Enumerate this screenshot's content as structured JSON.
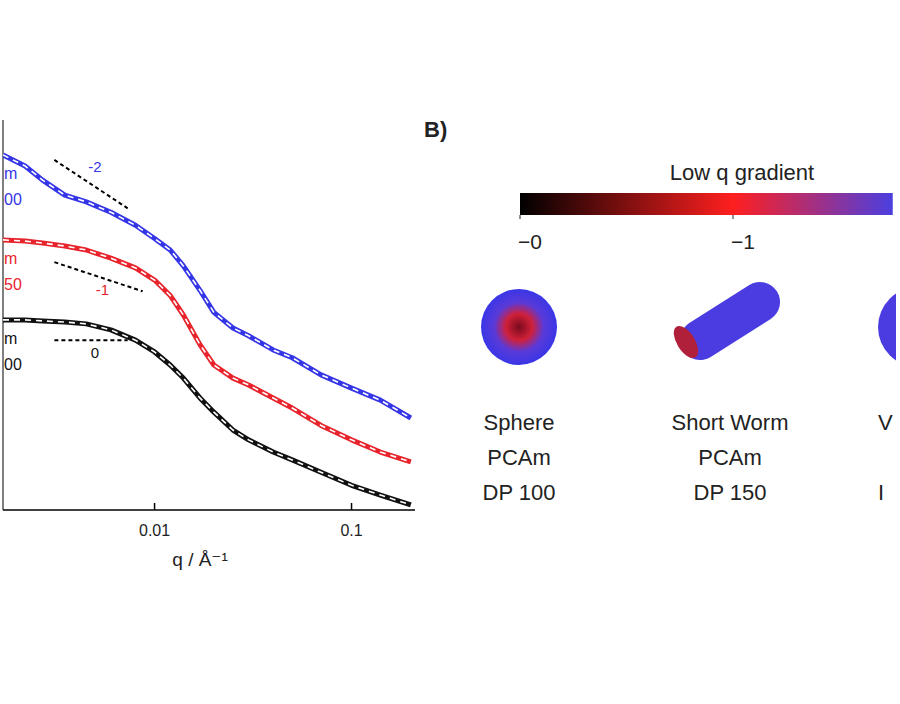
{
  "chart_data": [
    {
      "type": "line",
      "log": true,
      "x_label": "q / Å⁻¹",
      "xlim": [
        0.0017,
        0.21
      ],
      "ylim": [
        0.001,
        1000
      ],
      "xticks": [
        0.01,
        0.1
      ],
      "yticks": [],
      "tick_labels": "x",
      "x": [
        0.0017,
        0.0022,
        0.0027,
        0.0035,
        0.0045,
        0.006,
        0.008,
        0.01,
        0.012,
        0.014,
        0.017,
        0.02,
        0.025,
        0.03,
        0.04,
        0.05,
        0.07,
        0.1,
        0.14,
        0.2
      ],
      "series": [
        {
          "labels": [
            "m",
            "00"
          ],
          "color": "#3535e8",
          "line_style": "solid_with_dashed_fit",
          "values": [
            290,
            196,
            119,
            70,
            55,
            38,
            24,
            15,
            10,
            5.7,
            2.4,
            1.1,
            0.63,
            0.48,
            0.29,
            0.22,
            0.12,
            0.075,
            0.049,
            0.026
          ]
        },
        {
          "labels": [
            "m",
            "50"
          ],
          "color": "#e8232b",
          "line_style": "solid_with_dashed_fit",
          "values": [
            14.3,
            13.7,
            12.8,
            11.5,
            10,
            7.5,
            5.3,
            3.45,
            2.0,
            1.0,
            0.35,
            0.17,
            0.107,
            0.084,
            0.053,
            0.037,
            0.02,
            0.012,
            0.0078,
            0.0055
          ]
        },
        {
          "labels": [
            "m",
            "00"
          ],
          "color": "#111111",
          "line_style": "solid_with_dashed_fit",
          "values": [
            0.84,
            0.84,
            0.81,
            0.78,
            0.73,
            0.59,
            0.41,
            0.27,
            0.17,
            0.107,
            0.053,
            0.032,
            0.017,
            0.012,
            0.0078,
            0.0059,
            0.0038,
            0.0024,
            0.0017,
            0.0012
          ]
        }
      ],
      "annotations": [
        {
          "text": "-2",
          "slope": -2,
          "x": [
            0.0031,
            0.0073
          ],
          "y": 243,
          "color": "#3535e8"
        },
        {
          "text": "-1",
          "slope": -1,
          "x": [
            0.0031,
            0.0087
          ],
          "y": 6.5,
          "color": "#e8232b"
        },
        {
          "text": "0",
          "slope": 0,
          "x": [
            0.0031,
            0.0073
          ],
          "y": 0.41,
          "color": "#111111"
        }
      ]
    },
    {
      "type": "diagram",
      "panel": "B)",
      "title": "Low q gradient",
      "colorbar": {
        "range": [
          0,
          -1.75
        ],
        "stops": [
          0,
          -1,
          -1.75
        ],
        "colors": [
          "#000000",
          "#ff1f1f",
          "#4b3fe0"
        ],
        "ticks": [
          {
            "value": 0,
            "label": "−0"
          },
          {
            "value": -1,
            "label": "−1"
          }
        ]
      },
      "objects": [
        {
          "shape": "sphere",
          "lines": [
            "Sphere",
            "PCAm",
            "DP 100"
          ]
        },
        {
          "shape": "worm",
          "lines": [
            "Short Worm",
            "PCAm",
            "DP 150"
          ]
        },
        {
          "shape": "vesicle",
          "lines": [
            "V",
            null,
            "I"
          ]
        }
      ]
    }
  ]
}
